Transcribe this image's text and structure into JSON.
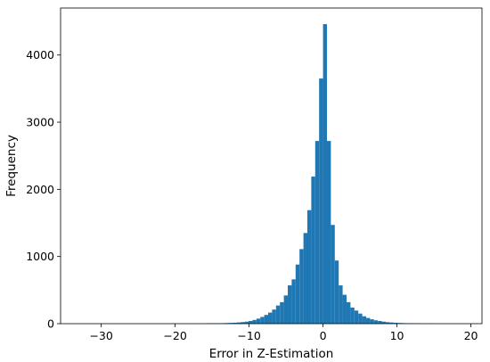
{
  "chart_data": {
    "type": "bar",
    "title": "",
    "xlabel": "Error in Z-Estimation",
    "ylabel": "Frequency",
    "xlim": [
      -35.5,
      21.5
    ],
    "ylim": [
      0,
      4700
    ],
    "xticks": [
      -30,
      -20,
      -10,
      0,
      10,
      20
    ],
    "xtick_labels": [
      "−30",
      "−20",
      "−10",
      "0",
      "10",
      "20"
    ],
    "yticks": [
      0,
      1000,
      2000,
      3000,
      4000
    ],
    "ytick_labels": [
      "0",
      "1000",
      "2000",
      "3000",
      "4000"
    ],
    "bar_color": "#1f77b4",
    "bin_width": 0.53,
    "bins": [
      {
        "x0": -15.9,
        "value": 5
      },
      {
        "x0": -15.37,
        "value": 5
      },
      {
        "x0": -14.84,
        "value": 5
      },
      {
        "x0": -14.31,
        "value": 6
      },
      {
        "x0": -13.78,
        "value": 7
      },
      {
        "x0": -13.25,
        "value": 9
      },
      {
        "x0": -12.72,
        "value": 11
      },
      {
        "x0": -12.19,
        "value": 14
      },
      {
        "x0": -11.66,
        "value": 18
      },
      {
        "x0": -11.13,
        "value": 23
      },
      {
        "x0": -10.6,
        "value": 30
      },
      {
        "x0": -10.07,
        "value": 40
      },
      {
        "x0": -9.54,
        "value": 55
      },
      {
        "x0": -9.01,
        "value": 75
      },
      {
        "x0": -8.48,
        "value": 100
      },
      {
        "x0": -7.95,
        "value": 130
      },
      {
        "x0": -7.42,
        "value": 165
      },
      {
        "x0": -6.89,
        "value": 210
      },
      {
        "x0": -6.36,
        "value": 270
      },
      {
        "x0": -5.83,
        "value": 320
      },
      {
        "x0": -5.3,
        "value": 420
      },
      {
        "x0": -4.77,
        "value": 570
      },
      {
        "x0": -4.24,
        "value": 660
      },
      {
        "x0": -3.71,
        "value": 880
      },
      {
        "x0": -3.18,
        "value": 1110
      },
      {
        "x0": -2.65,
        "value": 1350
      },
      {
        "x0": -2.12,
        "value": 1690
      },
      {
        "x0": -1.59,
        "value": 2190
      },
      {
        "x0": -1.06,
        "value": 2720
      },
      {
        "x0": -0.53,
        "value": 3650
      },
      {
        "x0": 0.0,
        "value": 4460
      },
      {
        "x0": 0.53,
        "value": 2720
      },
      {
        "x0": 1.06,
        "value": 1470
      },
      {
        "x0": 1.59,
        "value": 940
      },
      {
        "x0": 2.12,
        "value": 570
      },
      {
        "x0": 2.65,
        "value": 430
      },
      {
        "x0": 3.18,
        "value": 320
      },
      {
        "x0": 3.71,
        "value": 240
      },
      {
        "x0": 4.24,
        "value": 195
      },
      {
        "x0": 4.77,
        "value": 150
      },
      {
        "x0": 5.3,
        "value": 110
      },
      {
        "x0": 5.83,
        "value": 85
      },
      {
        "x0": 6.36,
        "value": 65
      },
      {
        "x0": 6.89,
        "value": 50
      },
      {
        "x0": 7.42,
        "value": 40
      },
      {
        "x0": 7.95,
        "value": 30
      },
      {
        "x0": 8.48,
        "value": 22
      },
      {
        "x0": 9.01,
        "value": 17
      },
      {
        "x0": 9.54,
        "value": 13
      },
      {
        "x0": 10.07,
        "value": 10
      },
      {
        "x0": 10.6,
        "value": 8
      },
      {
        "x0": 11.13,
        "value": 6
      },
      {
        "x0": 11.66,
        "value": 5
      },
      {
        "x0": 12.19,
        "value": 4
      },
      {
        "x0": 12.72,
        "value": 3
      },
      {
        "x0": 14.31,
        "value": 3
      }
    ]
  }
}
